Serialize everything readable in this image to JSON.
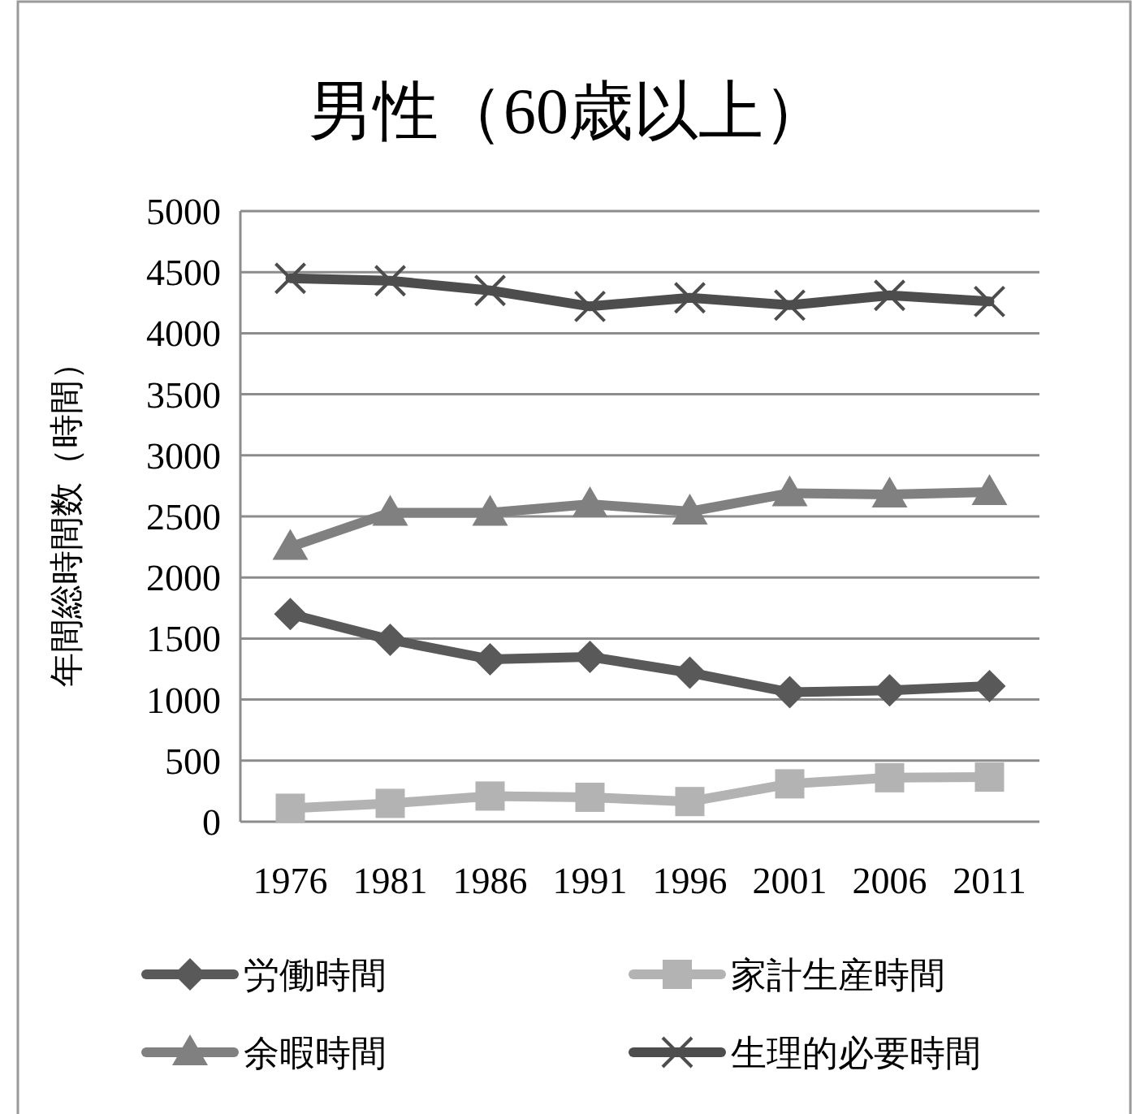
{
  "chart_data": {
    "type": "line",
    "title": "男性（60歳以上）",
    "ylabel": "年間総時間数（時間）",
    "categories": [
      "1976",
      "1981",
      "1986",
      "1991",
      "1996",
      "2001",
      "2006",
      "2011"
    ],
    "series": [
      {
        "name": "労働時間",
        "color": "#595959",
        "marker": "diamond",
        "values": [
          1700,
          1490,
          1330,
          1350,
          1220,
          1060,
          1075,
          1110
        ]
      },
      {
        "name": "家計生産時間",
        "color": "#b3b3b3",
        "marker": "square",
        "values": [
          110,
          150,
          210,
          200,
          165,
          310,
          360,
          365
        ]
      },
      {
        "name": "余暇時間",
        "color": "#808080",
        "marker": "triangle",
        "values": [
          2250,
          2530,
          2530,
          2600,
          2540,
          2690,
          2680,
          2700
        ]
      },
      {
        "name": "生理的必要時間",
        "color": "#4d4d4d",
        "marker": "cross",
        "values": [
          4450,
          4430,
          4350,
          4220,
          4290,
          4230,
          4310,
          4260
        ]
      }
    ],
    "ylim": [
      0,
      5000
    ],
    "yticks": [
      0,
      500,
      1000,
      1500,
      2000,
      2500,
      3000,
      3500,
      4000,
      4500,
      5000
    ],
    "grid": "y",
    "legend": "bottom"
  }
}
